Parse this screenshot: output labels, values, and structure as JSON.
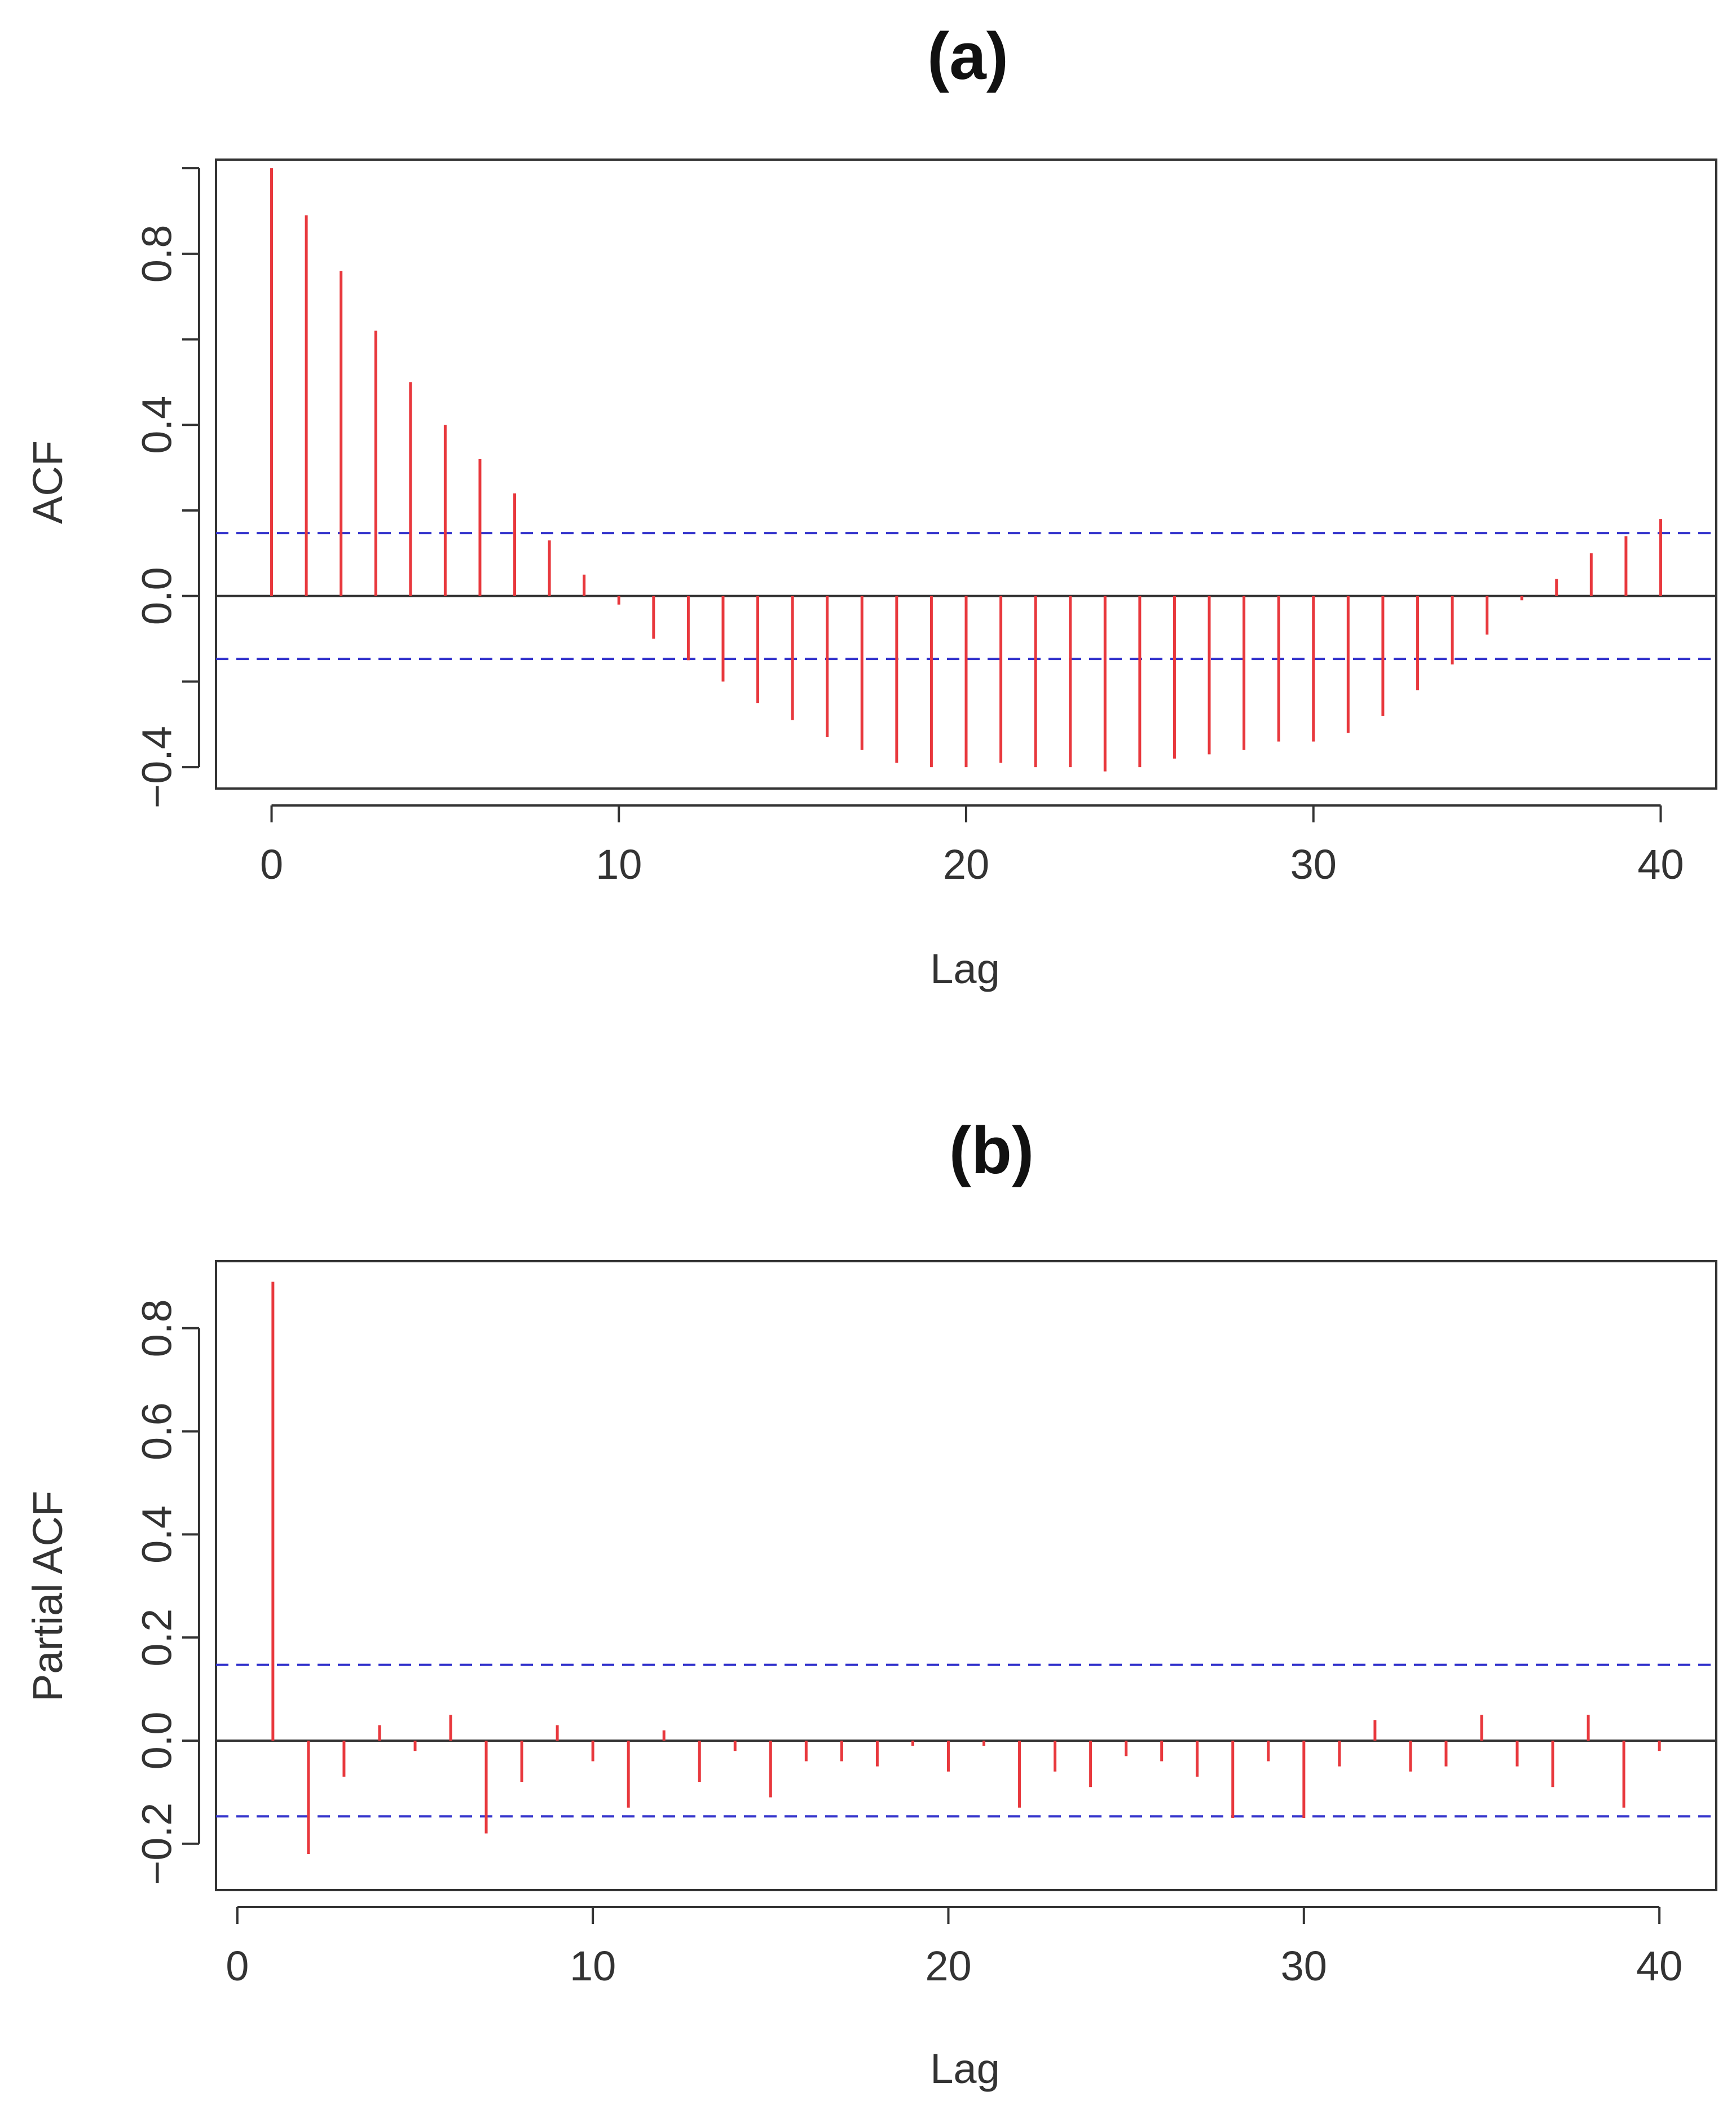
{
  "chart_data": [
    {
      "type": "bar",
      "title": "(a)",
      "xlabel": "Lag",
      "ylabel": "ACF",
      "xlim": [
        -1.6,
        41.6
      ],
      "ylim": [
        -0.45,
        1.02
      ],
      "xticks": [
        0,
        10,
        20,
        30,
        40
      ],
      "xtick_labels": [
        "0",
        "10",
        "20",
        "30",
        "40"
      ],
      "yticks": [
        -0.4,
        -0.2,
        0.0,
        0.2,
        0.4,
        0.6,
        0.8,
        1.0
      ],
      "ytick_labels": [
        "−0.4",
        "",
        "0.0",
        "",
        "0.4",
        "",
        "0.8",
        ""
      ],
      "confidence_bounds": [
        0.147,
        -0.147
      ],
      "series": [
        {
          "name": "ACF",
          "x": [
            0,
            1,
            2,
            3,
            4,
            5,
            6,
            7,
            8,
            9,
            10,
            11,
            12,
            13,
            14,
            15,
            16,
            17,
            18,
            19,
            20,
            21,
            22,
            23,
            24,
            25,
            26,
            27,
            28,
            29,
            30,
            31,
            32,
            33,
            34,
            35,
            36,
            37,
            38,
            39,
            40
          ],
          "values": [
            1.0,
            0.89,
            0.76,
            0.62,
            0.5,
            0.4,
            0.32,
            0.24,
            0.13,
            0.05,
            -0.02,
            -0.1,
            -0.15,
            -0.2,
            -0.25,
            -0.29,
            -0.33,
            -0.36,
            -0.39,
            -0.4,
            -0.4,
            -0.39,
            -0.4,
            -0.4,
            -0.41,
            -0.4,
            -0.38,
            -0.37,
            -0.36,
            -0.34,
            -0.34,
            -0.32,
            -0.28,
            -0.22,
            -0.16,
            -0.09,
            -0.01,
            0.04,
            0.1,
            0.14,
            0.18
          ]
        }
      ],
      "colors": {
        "bars": "#e8383d",
        "bounds": "#3333cc",
        "axis": "#333333"
      }
    },
    {
      "type": "bar",
      "title": "(b)",
      "xlabel": "Lag",
      "ylabel": "Partial ACF",
      "xlim": [
        -0.6,
        41.6
      ],
      "ylim": [
        -0.29,
        0.93
      ],
      "xticks": [
        0,
        10,
        20,
        30,
        40
      ],
      "xtick_labels": [
        "0",
        "10",
        "20",
        "30",
        "40"
      ],
      "yticks": [
        -0.2,
        0.0,
        0.2,
        0.4,
        0.6,
        0.8
      ],
      "ytick_labels": [
        "−0.2",
        "0.0",
        "0.2",
        "0.4",
        "0.6",
        "0.8"
      ],
      "confidence_bounds": [
        0.147,
        -0.147
      ],
      "series": [
        {
          "name": "Partial ACF",
          "x": [
            1,
            2,
            3,
            4,
            5,
            6,
            7,
            8,
            9,
            10,
            11,
            12,
            13,
            14,
            15,
            16,
            17,
            18,
            19,
            20,
            21,
            22,
            23,
            24,
            25,
            26,
            27,
            28,
            29,
            30,
            31,
            32,
            33,
            34,
            35,
            36,
            37,
            38,
            39,
            40
          ],
          "values": [
            0.89,
            -0.22,
            -0.07,
            0.03,
            -0.02,
            0.05,
            -0.18,
            -0.08,
            0.03,
            -0.04,
            -0.13,
            0.02,
            -0.08,
            -0.02,
            -0.11,
            -0.04,
            -0.04,
            -0.05,
            -0.01,
            -0.06,
            -0.01,
            -0.13,
            -0.06,
            -0.09,
            -0.03,
            -0.04,
            -0.07,
            -0.15,
            -0.04,
            -0.15,
            -0.05,
            0.04,
            -0.06,
            -0.05,
            0.05,
            -0.05,
            -0.09,
            0.05,
            -0.13,
            -0.02
          ]
        }
      ],
      "colors": {
        "bars": "#e8383d",
        "bounds": "#3333cc",
        "axis": "#333333"
      }
    }
  ]
}
